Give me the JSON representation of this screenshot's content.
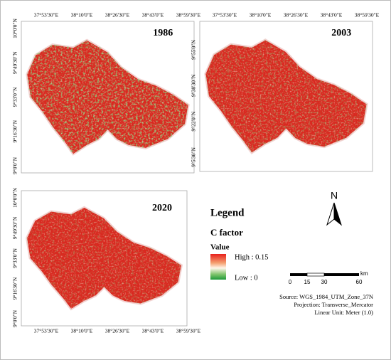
{
  "panels": [
    {
      "year": "1986",
      "lon_labels": [
        "37°53'30\"E",
        "38°10'0\"E",
        "38°26'30\"E",
        "38°43'0\"E",
        "38°59'30\"E"
      ],
      "lat_labels": [
        "10°0'0\"N",
        "9°49'30\"N",
        "9°33'0\"N",
        "9°16'30\"N",
        "9°0'0\"N"
      ]
    },
    {
      "year": "2003",
      "lon_labels": [
        "37°53'30\"E",
        "38°10'0\"E",
        "38°26'30\"E",
        "38°43'0\"E",
        "38°59'30\"E"
      ],
      "lat_labels": [
        "9°55'0\"N",
        "9°38'30\"N",
        "9°22'0\"N",
        "9°5'30\"N"
      ]
    },
    {
      "year": "2020",
      "lon_labels": [
        "37°53'30\"E",
        "38°10'0\"E",
        "38°26'30\"E",
        "38°43'0\"E",
        "38°59'30\"E"
      ],
      "lat_labels": [
        "10°0'0\"N",
        "9°49'30\"N",
        "9°33'0\"N",
        "9°16'30\"N",
        "9°0'0\"N"
      ]
    }
  ],
  "legend": {
    "title": "Legend",
    "layer": "C factor",
    "field": "Value",
    "high": "High : 0.15",
    "low": "Low : 0"
  },
  "north": "N",
  "scale_bar": {
    "labels": [
      "0",
      "15",
      "30",
      "60"
    ],
    "unit": "km"
  },
  "source": [
    "Source: WGS_1984_UTM_Zone_37N",
    "Projection: Transverse_Mercator",
    "Linear Unit: Meter (1.0)"
  ]
}
